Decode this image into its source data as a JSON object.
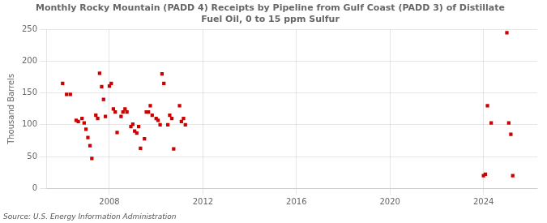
{
  "chart_data": {
    "type": "scatter",
    "title": "Monthly Rocky Mountain (PADD 4) Receipts by Pipeline from Gulf Coast (PADD 3) of Distillate\nFuel Oil, 0 to 15 ppm Sulfur",
    "ylabel": "Thousand Barrels",
    "annotations": [
      "Source: U.S. Energy Information Administration"
    ],
    "color": "#cc0000",
    "marker": "square",
    "grid": true,
    "xlim": [
      2005.3,
      2026.3
    ],
    "ylim": [
      0,
      250
    ],
    "xticks": [
      2008,
      2012,
      2016,
      2020,
      2024
    ],
    "yticks": [
      0,
      50,
      100,
      150,
      200,
      250
    ],
    "x": [
      2006.0,
      2006.17,
      2006.33,
      2006.58,
      2006.67,
      2006.83,
      2006.92,
      2007.0,
      2007.08,
      2007.17,
      2007.25,
      2007.42,
      2007.5,
      2007.58,
      2007.67,
      2007.75,
      2007.83,
      2008.0,
      2008.08,
      2008.17,
      2008.25,
      2008.33,
      2008.5,
      2008.58,
      2008.67,
      2008.75,
      2008.92,
      2009.0,
      2009.08,
      2009.17,
      2009.25,
      2009.33,
      2009.5,
      2009.58,
      2009.67,
      2009.75,
      2009.83,
      2010.0,
      2010.08,
      2010.17,
      2010.25,
      2010.33,
      2010.5,
      2010.58,
      2010.67,
      2010.75,
      2011.0,
      2011.08,
      2011.17,
      2011.25,
      2024.0,
      2024.08,
      2024.17,
      2024.33,
      2025.0,
      2025.08,
      2025.17,
      2025.25
    ],
    "values": [
      165,
      148,
      148,
      107,
      105,
      110,
      103,
      93,
      80,
      67,
      47,
      115,
      110,
      181,
      160,
      140,
      113,
      161,
      165,
      125,
      120,
      88,
      113,
      120,
      125,
      120,
      97,
      101,
      90,
      87,
      97,
      63,
      78,
      120,
      120,
      130,
      115,
      110,
      107,
      100,
      180,
      165,
      100,
      115,
      110,
      62,
      130,
      105,
      110,
      100,
      20,
      22,
      130,
      103,
      245,
      103,
      85,
      20
    ]
  }
}
